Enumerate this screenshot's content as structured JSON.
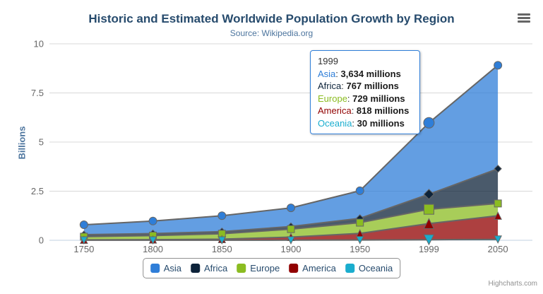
{
  "chart": {
    "title": "Historic and Estimated Worldwide Population Growth by Region",
    "subtitle": "Source: Wikipedia.org",
    "credits": "Highcharts.com"
  },
  "colors": {
    "title": "#274b6d",
    "subtitle": "#4d759e",
    "axis_label": "#666666",
    "grid_line": "#d8d8d8",
    "axis_line": "#c0d0e0",
    "series_outline": "#666666",
    "legend_border": "#909090",
    "legend_text": "#274b6d",
    "tooltip_border": "#2f7ed8",
    "credits_text": "#909090",
    "menu_icon": "#666666"
  },
  "chart_data": {
    "type": "area",
    "stacking": "normal",
    "stack_direction": "first-series-on-top",
    "title": "Historic and Estimated Worldwide Population Growth by Region",
    "subtitle": "Source: Wikipedia.org",
    "xlabel": "",
    "ylabel": "Billions",
    "ylim": [
      0,
      10
    ],
    "grid": true,
    "legend_position": "bottom",
    "values_unit": "millions",
    "categories": [
      "1750",
      "1800",
      "1850",
      "1900",
      "1950",
      "1999",
      "2050"
    ],
    "y_ticks": [
      0,
      2.5,
      5,
      7.5,
      10
    ],
    "y_tick_labels": [
      "0",
      "2.5",
      "5",
      "7.5",
      "10"
    ],
    "fill_opacity": 0.75,
    "series": [
      {
        "name": "Asia",
        "color": "#2f7ed8",
        "marker": "circle",
        "values": [
          502,
          635,
          809,
          947,
          1402,
          3634,
          5268
        ]
      },
      {
        "name": "Africa",
        "color": "#0d233a",
        "marker": "diamond",
        "values": [
          106,
          107,
          111,
          133,
          221,
          767,
          1766
        ]
      },
      {
        "name": "Europe",
        "color": "#8bbc21",
        "marker": "square",
        "values": [
          163,
          203,
          276,
          408,
          547,
          729,
          628
        ]
      },
      {
        "name": "America",
        "color": "#910000",
        "marker": "triangle",
        "values": [
          18,
          31,
          54,
          156,
          339,
          818,
          1201
        ]
      },
      {
        "name": "Oceania",
        "color": "#1aadce",
        "marker": "triangle-down",
        "values": [
          2,
          2,
          2,
          6,
          13,
          30,
          46
        ]
      }
    ]
  },
  "tooltip": {
    "header": "1999",
    "hover_index": 5,
    "rows": [
      {
        "name": "Asia",
        "color": "#2f7ed8",
        "value": "3,634",
        "unit": "millions"
      },
      {
        "name": "Africa",
        "color": "#0d233a",
        "value": "767",
        "unit": "millions"
      },
      {
        "name": "Europe",
        "color": "#8bbc21",
        "value": "729",
        "unit": "millions"
      },
      {
        "name": "America",
        "color": "#910000",
        "value": "818",
        "unit": "millions"
      },
      {
        "name": "Oceania",
        "color": "#1aadce",
        "value": "30",
        "unit": "millions"
      }
    ]
  },
  "legend": {
    "items": [
      "Asia",
      "Africa",
      "Europe",
      "America",
      "Oceania"
    ]
  }
}
